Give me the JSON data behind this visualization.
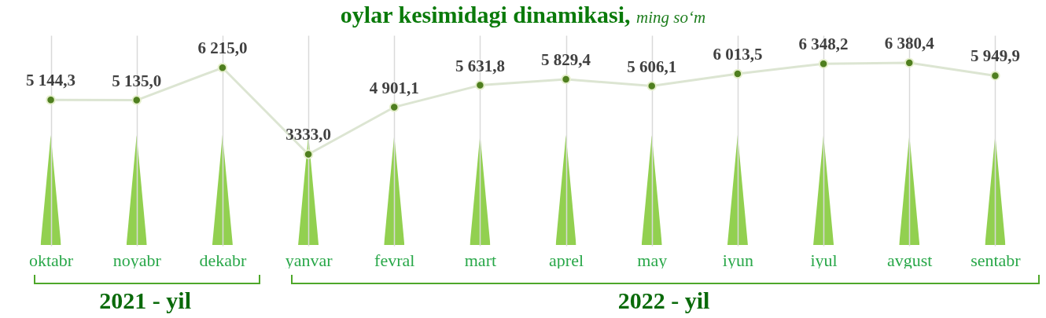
{
  "chart_data": {
    "type": "line",
    "title": "oylar kesimidagi dinamikasi,",
    "subtitle": "ming so‘m",
    "categories": [
      "oktabr",
      "noyabr",
      "dekabr",
      "yanvar",
      "fevral",
      "mart",
      "aprel",
      "may",
      "iyun",
      "iyul",
      "avgust",
      "sentabr"
    ],
    "series": [
      {
        "color": "#4f7f1f",
        "values": [
          5144.3,
          5135.0,
          6215.0,
          3333.0,
          4901.1,
          5631.8,
          5829.4,
          5606.1,
          6013.5,
          6348.2,
          6380.4,
          5949.9
        ],
        "value_labels": [
          "5 144,3",
          "5 135,0",
          "6 215,0",
          "3333,0",
          "4 901,1",
          "5 631,8",
          "5 829,4",
          "5 606,1",
          "6 013,5",
          "6 348,2",
          "6 380,4",
          "5 949,9"
        ]
      }
    ],
    "marker": "circle",
    "grid": "x",
    "annotations": [
      "2021 - yil",
      "2022 - yil"
    ]
  }
}
